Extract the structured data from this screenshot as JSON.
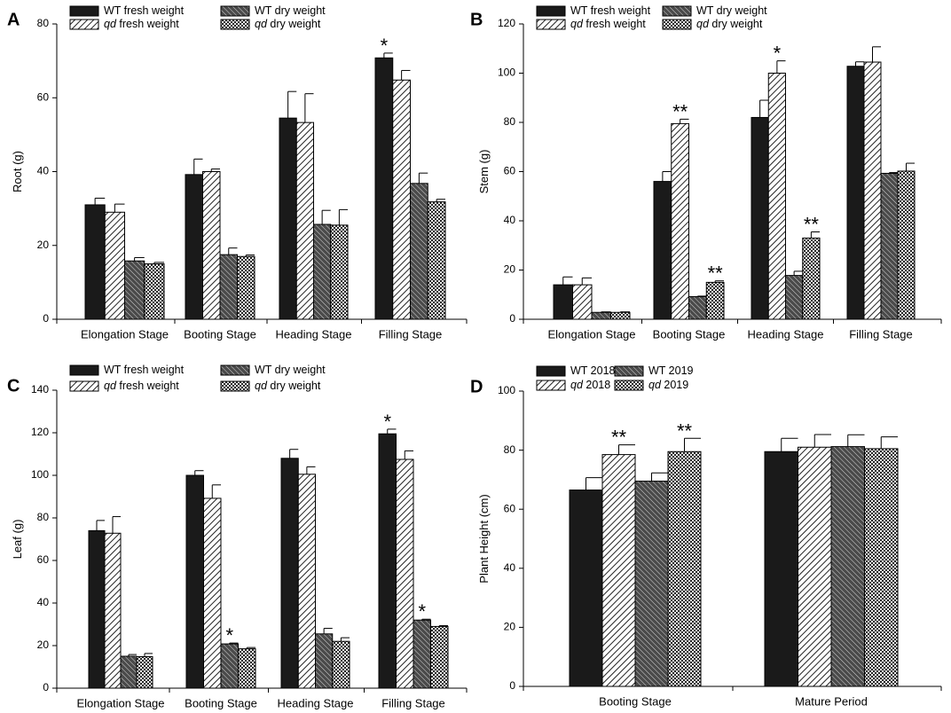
{
  "chart_data": [
    {
      "panel": "A",
      "type": "bar",
      "ylabel": "Root (g)",
      "ylim": [
        0,
        80
      ],
      "yticks": [
        0,
        20,
        40,
        60,
        80
      ],
      "categories": [
        "Elongation Stage",
        "Booting Stage",
        "Heading Stage",
        "Filling Stage"
      ],
      "series": [
        {
          "name": "WT fresh weight",
          "pattern": "solid",
          "values": [
            31,
            39.2,
            54.5,
            70.8
          ],
          "errors": [
            1.8,
            4.2,
            7.2,
            1.3
          ]
        },
        {
          "name": "qd fresh weight",
          "pattern": "hatch-light",
          "values": [
            29,
            40,
            53.3,
            64.8
          ],
          "errors": [
            2.2,
            0.7,
            7.8,
            2.6
          ]
        },
        {
          "name": "WT dry weight",
          "pattern": "hatch-dark",
          "values": [
            15.8,
            17.5,
            25.7,
            36.8
          ],
          "errors": [
            0.9,
            1.8,
            3.8,
            2.8
          ]
        },
        {
          "name": "qd dry weight",
          "pattern": "check",
          "values": [
            15,
            17,
            25.5,
            31.8
          ],
          "errors": [
            0.4,
            0.4,
            4.2,
            0.7
          ]
        }
      ],
      "annotations": [
        {
          "series": 0,
          "category": 3,
          "text": "*"
        }
      ],
      "legend": {
        "rows": [
          [
            {
              "series": 0,
              "prefix": "",
              "suffix": "WT fresh weight"
            },
            {
              "series": 2,
              "prefix": "",
              "suffix": "WT dry weight"
            }
          ],
          [
            {
              "series": 1,
              "prefix": "qd",
              "suffix": " fresh weight"
            },
            {
              "series": 3,
              "prefix": "qd",
              "suffix": " dry weight"
            }
          ]
        ]
      }
    },
    {
      "panel": "B",
      "type": "bar",
      "ylabel": "Stem (g)",
      "ylim": [
        0,
        120
      ],
      "yticks": [
        0,
        20,
        40,
        60,
        80,
        100,
        120
      ],
      "categories": [
        "Elongation Stage",
        "Booting Stage",
        "Heading Stage",
        "Filling Stage"
      ],
      "series": [
        {
          "name": "WT fresh weight",
          "pattern": "solid",
          "values": [
            14,
            56,
            82,
            102.8
          ],
          "errors": [
            3.2,
            4,
            7,
            1.8
          ]
        },
        {
          "name": "qd fresh weight",
          "pattern": "hatch-light",
          "values": [
            14,
            79.5,
            100,
            104.5
          ],
          "errors": [
            2.8,
            1.8,
            5,
            6.2
          ]
        },
        {
          "name": "WT dry weight",
          "pattern": "hatch-dark",
          "values": [
            2.8,
            9.2,
            17.8,
            59.3
          ],
          "errors": [
            0.2,
            0.2,
            1.7,
            0.3
          ]
        },
        {
          "name": "qd dry weight",
          "pattern": "check",
          "values": [
            2.8,
            15,
            33,
            60.2
          ],
          "errors": [
            0.2,
            0.6,
            2.5,
            3.2
          ]
        }
      ],
      "annotations": [
        {
          "series": 1,
          "category": 1,
          "text": "**"
        },
        {
          "series": 3,
          "category": 1,
          "text": "**"
        },
        {
          "series": 1,
          "category": 2,
          "text": "*"
        },
        {
          "series": 3,
          "category": 2,
          "text": "**"
        }
      ],
      "legend": {
        "rows": [
          [
            {
              "series": 0,
              "prefix": "",
              "suffix": "WT fresh weight"
            },
            {
              "series": 2,
              "prefix": "",
              "suffix": "WT dry weight"
            }
          ],
          [
            {
              "series": 1,
              "prefix": "qd",
              "suffix": " fresh weight"
            },
            {
              "series": 3,
              "prefix": "qd",
              "suffix": " dry weight"
            }
          ]
        ]
      }
    },
    {
      "panel": "C",
      "type": "bar",
      "ylabel": "Leaf (g)",
      "ylim": [
        0,
        140
      ],
      "yticks": [
        0,
        20,
        40,
        60,
        80,
        100,
        120,
        140
      ],
      "categories": [
        "Elongation Stage",
        "Booting Stage",
        "Heading Stage",
        "Filling Stage"
      ],
      "series": [
        {
          "name": "WT fresh weight",
          "pattern": "solid",
          "values": [
            74,
            100,
            108,
            119.5
          ],
          "errors": [
            4.8,
            2.2,
            4.2,
            2.2
          ]
        },
        {
          "name": "qd fresh weight",
          "pattern": "hatch-light",
          "values": [
            72.8,
            89.2,
            100.5,
            107.5
          ],
          "errors": [
            7.8,
            6.3,
            3.5,
            4
          ]
        },
        {
          "name": "WT dry weight",
          "pattern": "hatch-dark",
          "values": [
            15,
            20.8,
            25.5,
            32
          ],
          "errors": [
            0.8,
            0.4,
            2.6,
            0.4
          ]
        },
        {
          "name": "qd dry weight",
          "pattern": "check",
          "values": [
            14.8,
            18.5,
            22,
            29
          ],
          "errors": [
            1.5,
            0.6,
            1.7,
            0.4
          ]
        }
      ],
      "annotations": [
        {
          "series": 0,
          "category": 3,
          "text": "*"
        },
        {
          "series": 2,
          "category": 1,
          "text": "*"
        },
        {
          "series": 2,
          "category": 3,
          "text": "*"
        }
      ],
      "legend": {
        "rows": [
          [
            {
              "series": 0,
              "prefix": "",
              "suffix": "WT fresh weight"
            },
            {
              "series": 2,
              "prefix": "",
              "suffix": "WT dry weight"
            }
          ],
          [
            {
              "series": 1,
              "prefix": "qd",
              "suffix": " fresh weight"
            },
            {
              "series": 3,
              "prefix": "qd",
              "suffix": " dry weight"
            }
          ]
        ]
      }
    },
    {
      "panel": "D",
      "type": "bar",
      "ylabel": "Plant Height (cm)",
      "ylim": [
        0,
        100
      ],
      "yticks": [
        0,
        20,
        40,
        60,
        80,
        100
      ],
      "categories": [
        "Booting Stage",
        "Mature Period"
      ],
      "series": [
        {
          "name": "WT 2018",
          "pattern": "solid",
          "values": [
            66.5,
            79.5
          ],
          "errors": [
            4.2,
            4.5
          ]
        },
        {
          "name": "qd 2018",
          "pattern": "hatch-light",
          "values": [
            78.5,
            81
          ],
          "errors": [
            3.3,
            4.3
          ]
        },
        {
          "name": "WT 2019",
          "pattern": "hatch-dark",
          "values": [
            69.5,
            81.2
          ],
          "errors": [
            2.8,
            4
          ]
        },
        {
          "name": "qd 2019",
          "pattern": "check",
          "values": [
            79.5,
            80.5
          ],
          "errors": [
            4.5,
            4
          ]
        }
      ],
      "annotations": [
        {
          "series": 1,
          "category": 0,
          "text": "**"
        },
        {
          "series": 3,
          "category": 0,
          "text": "**"
        }
      ],
      "legend": {
        "rows": [
          [
            {
              "series": 0,
              "prefix": "",
              "suffix": "WT 2018"
            },
            {
              "series": 2,
              "prefix": "",
              "suffix": "WT 2019"
            }
          ],
          [
            {
              "series": 1,
              "prefix": "qd",
              "suffix": " 2018"
            },
            {
              "series": 3,
              "prefix": "qd",
              "suffix": " 2019"
            }
          ]
        ]
      }
    }
  ]
}
